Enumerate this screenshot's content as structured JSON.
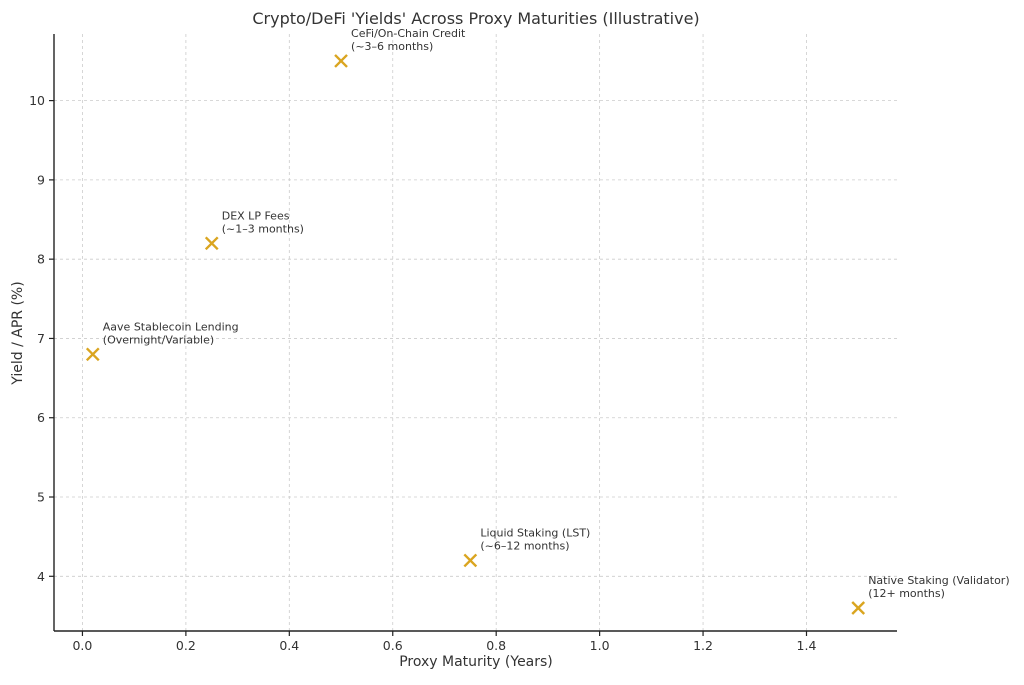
{
  "chart_data": {
    "type": "scatter",
    "title": "Crypto/DeFi 'Yields' Across Proxy Maturities (Illustrative)",
    "xlabel": "Proxy Maturity (Years)",
    "ylabel": "Yield / APR (%)",
    "xlim": [
      -0.055,
      1.575
    ],
    "ylim": [
      3.31,
      10.84
    ],
    "xticks": [
      0.0,
      0.2,
      0.4,
      0.6,
      0.8,
      1.0,
      1.2,
      1.4
    ],
    "xtick_labels": [
      "0.0",
      "0.2",
      "0.4",
      "0.6",
      "0.8",
      "1.0",
      "1.2",
      "1.4"
    ],
    "yticks": [
      4,
      5,
      6,
      7,
      8,
      9,
      10
    ],
    "ytick_labels": [
      "4",
      "5",
      "6",
      "7",
      "8",
      "9",
      "10"
    ],
    "grid": true,
    "marker": "x",
    "color": "#DAA520",
    "points": [
      {
        "x": 0.02,
        "y": 6.8,
        "label_line1": "Aave Stablecoin Lending",
        "label_line2": "(Overnight/Variable)"
      },
      {
        "x": 0.25,
        "y": 8.2,
        "label_line1": "DEX LP Fees",
        "label_line2": "(~1–3 months)"
      },
      {
        "x": 0.5,
        "y": 10.5,
        "label_line1": "CeFi/On-Chain Credit",
        "label_line2": "(~3–6 months)"
      },
      {
        "x": 0.75,
        "y": 4.2,
        "label_line1": "Liquid Staking (LST)",
        "label_line2": "(~6–12 months)"
      },
      {
        "x": 1.5,
        "y": 3.6,
        "label_line1": "Native Staking (Validator)",
        "label_line2": "(12+ months)"
      }
    ]
  }
}
